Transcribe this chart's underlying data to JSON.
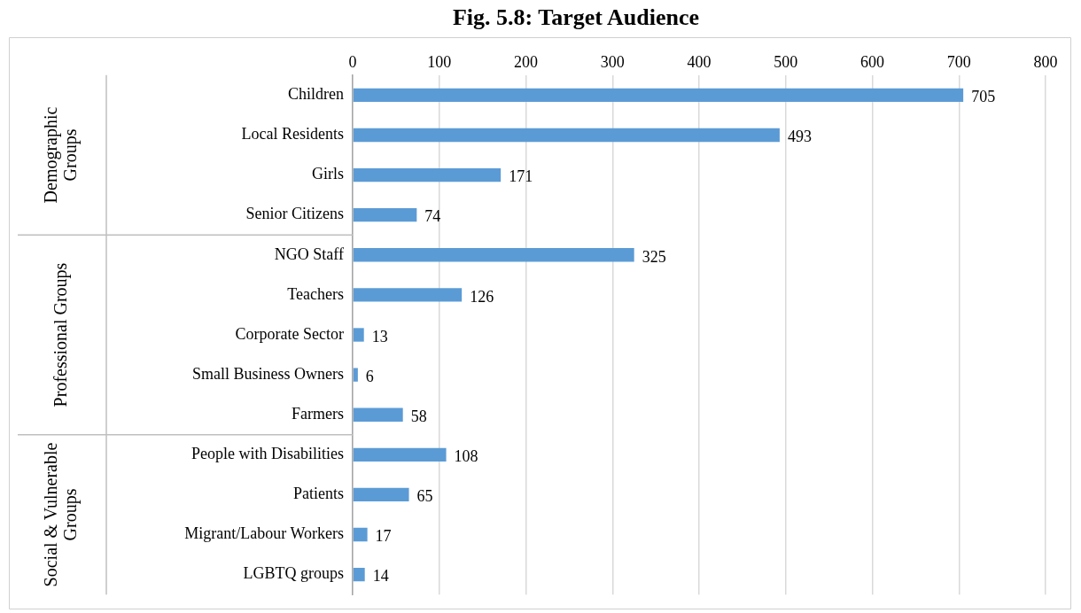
{
  "chart_data": {
    "type": "bar",
    "orientation": "horizontal",
    "title": "Fig. 5.8: Target Audience",
    "categories": [
      "Children",
      "Local Residents",
      "Girls",
      "Senior Citizens",
      "NGO Staff",
      "Teachers",
      "Corporate Sector",
      "Small Business Owners",
      "Farmers",
      "People with Disabilities",
      "Patients",
      "Migrant/Labour Workers",
      "LGBTQ groups"
    ],
    "values": [
      705,
      493,
      171,
      74,
      325,
      126,
      13,
      6,
      58,
      108,
      65,
      17,
      14
    ],
    "color": "#5b9bd5",
    "xlim": [
      0,
      800
    ],
    "xticks": [
      0,
      100,
      200,
      300,
      400,
      500,
      600,
      700,
      800
    ],
    "grid": "x",
    "legend": false,
    "data_labels": true,
    "annotations": [
      "Demographic Groups",
      "Professional Groups",
      "Social & Vulnerable Groups"
    ]
  }
}
